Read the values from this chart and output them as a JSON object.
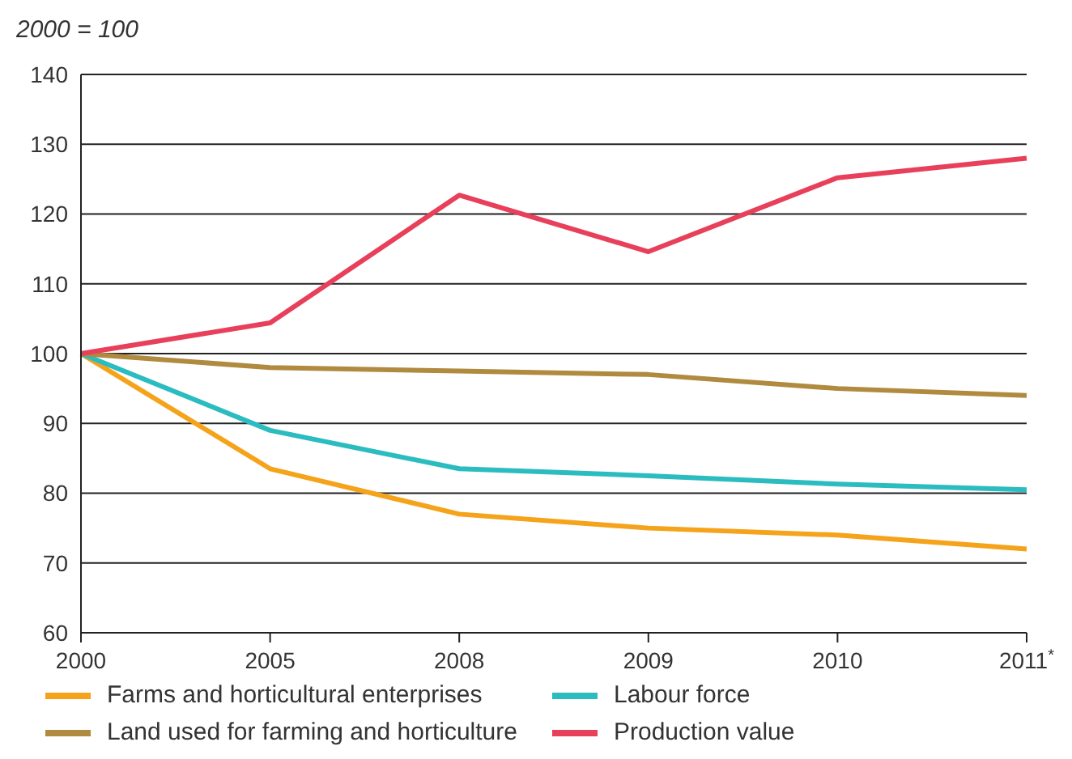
{
  "chart_data": {
    "type": "line",
    "ylabel": "2000 = 100",
    "categories": [
      "2000",
      "2005",
      "2008",
      "2009",
      "2010",
      "2011$^{*}$"
    ],
    "series": [
      {
        "name": "Farms and horticultural enterprises",
        "color": "#f5a31a",
        "values": [
          100,
          83.5,
          77,
          75,
          74,
          72
        ]
      },
      {
        "name": "Labour force",
        "color": "#2bbcc0",
        "values": [
          100,
          89,
          83.5,
          82.5,
          81.3,
          80.5
        ]
      },
      {
        "name": "Land used for farming and horticulture",
        "color": "#b08a3e",
        "values": [
          100,
          98,
          97.5,
          97,
          95,
          94
        ]
      },
      {
        "name": "Production value",
        "color": "#e8405a",
        "values": [
          100,
          104.4,
          122.7,
          114.6,
          125.2,
          128
        ]
      }
    ],
    "ylim": [
      60,
      140
    ],
    "yticks": [
      60,
      70,
      80,
      90,
      100,
      110,
      120,
      130,
      140
    ],
    "grid": "y",
    "legend": "bottom",
    "marker": "none",
    "line_style": "solid"
  }
}
